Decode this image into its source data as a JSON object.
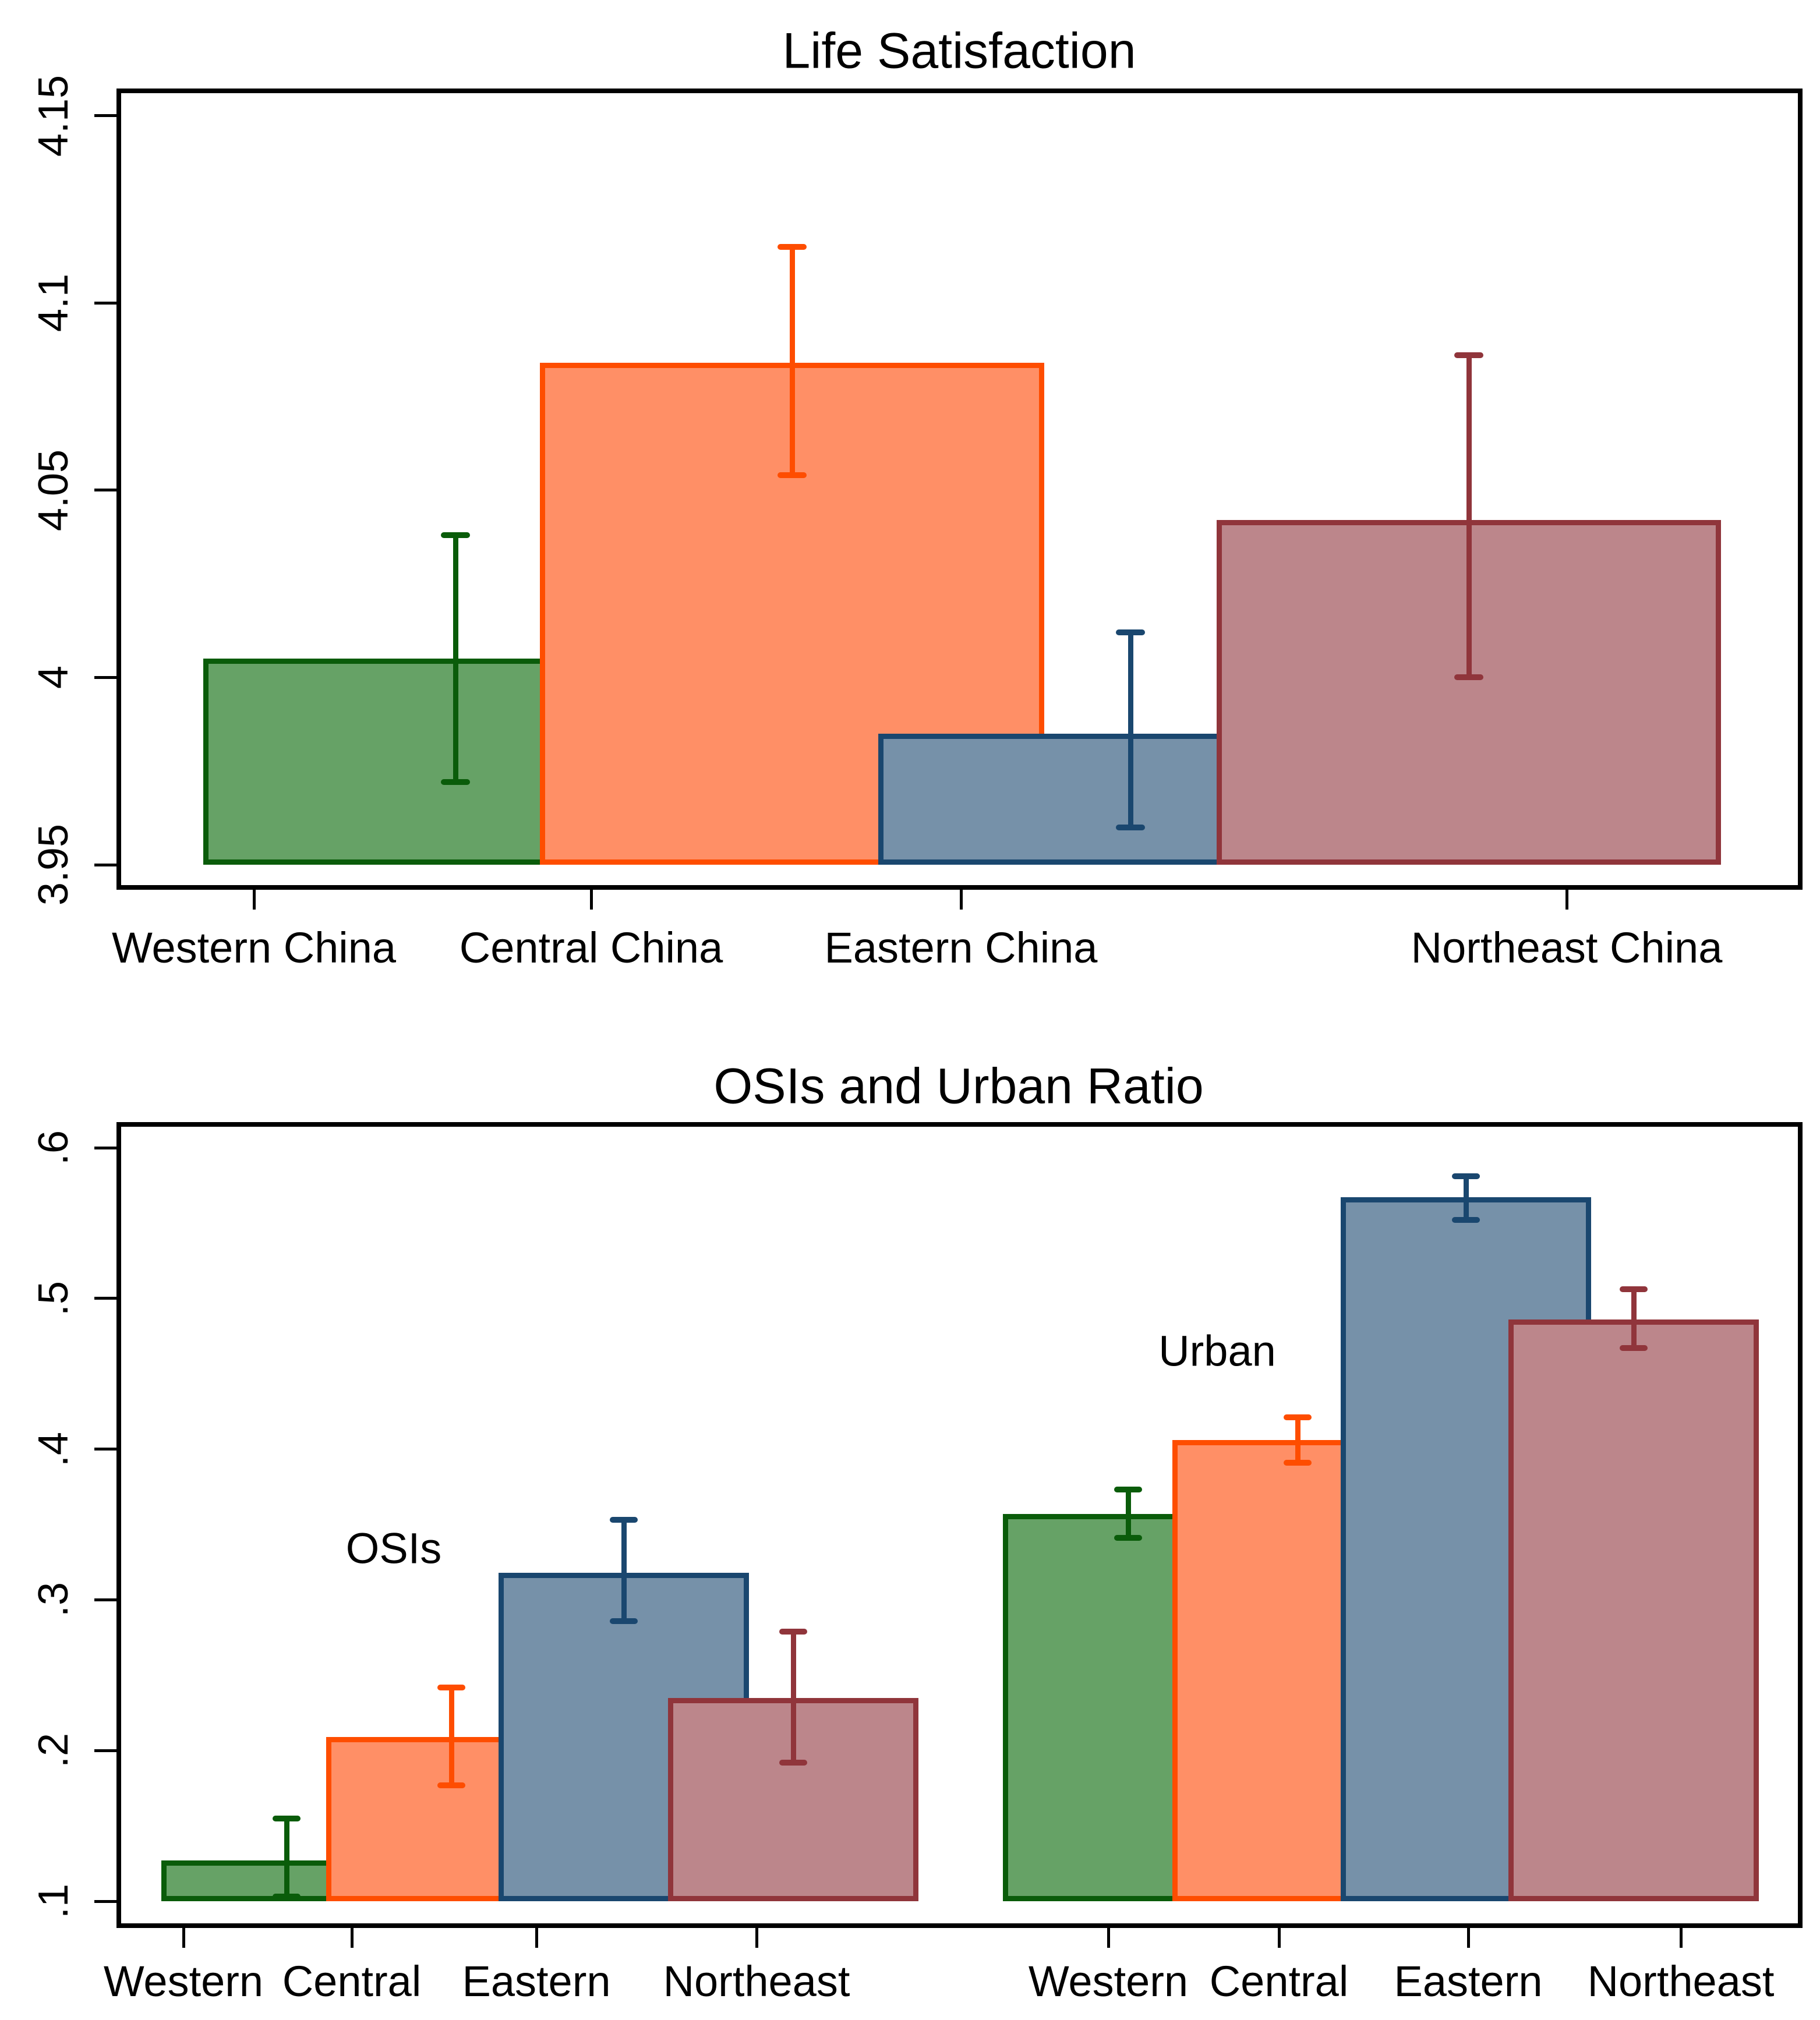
{
  "chart_data": [
    {
      "type": "bar",
      "title": "Life Satisfaction",
      "categories": [
        "Western China",
        "Central China",
        "Eastern China",
        "Northeast China"
      ],
      "values": [
        4.005,
        4.084,
        3.985,
        4.042
      ],
      "ci_low": [
        3.972,
        4.054,
        3.96,
        4.0
      ],
      "ci_high": [
        4.038,
        4.115,
        4.012,
        4.086
      ],
      "ylim": [
        3.95,
        4.15
      ],
      "ytick_values": [
        3.95,
        4.0,
        4.05,
        4.1,
        4.15
      ],
      "ytick_labels": [
        "3.95",
        "4",
        "4.05",
        "4.1",
        "4.15"
      ],
      "xlabel": "",
      "ylabel": "",
      "grid": false,
      "legend": "none",
      "error_bars": true
    },
    {
      "type": "bar",
      "title": "OSIs and Urban Ratio",
      "categories": [
        "Western",
        "Central",
        "Eastern",
        "Northeast"
      ],
      "series": [
        {
          "name": "OSIs",
          "values": [
            0.127,
            0.209,
            0.318,
            0.235
          ],
          "ci_low": [
            0.103,
            0.177,
            0.286,
            0.192
          ],
          "ci_high": [
            0.155,
            0.242,
            0.353,
            0.279
          ]
        },
        {
          "name": "Urban",
          "values": [
            0.357,
            0.406,
            0.567,
            0.486
          ],
          "ci_low": [
            0.341,
            0.391,
            0.552,
            0.467
          ],
          "ci_high": [
            0.373,
            0.421,
            0.581,
            0.506
          ]
        }
      ],
      "annotations": [
        {
          "text": "OSIs"
        },
        {
          "text": "Urban"
        }
      ],
      "ylim": [
        0.1,
        0.6
      ],
      "ytick_values": [
        0.1,
        0.2,
        0.3,
        0.4,
        0.5,
        0.6
      ],
      "ytick_labels": [
        ".1",
        ".2",
        ".3",
        ".4",
        ".5",
        ".6"
      ],
      "xlabel": "",
      "ylabel": "",
      "grid": false,
      "legend": "none",
      "error_bars": true
    }
  ],
  "palette": {
    "regions": [
      {
        "name": "Western",
        "fill": "#66a266",
        "stroke": "#0a5c0a"
      },
      {
        "name": "Central",
        "fill": "#ff8f66",
        "stroke": "#fe4d00"
      },
      {
        "name": "Eastern",
        "fill": "#7691a9",
        "stroke": "#1a476f"
      },
      {
        "name": "Northeast",
        "fill": "#bc868b",
        "stroke": "#90353b"
      }
    ],
    "axis_color": "#000000",
    "background": "#ffffff"
  }
}
